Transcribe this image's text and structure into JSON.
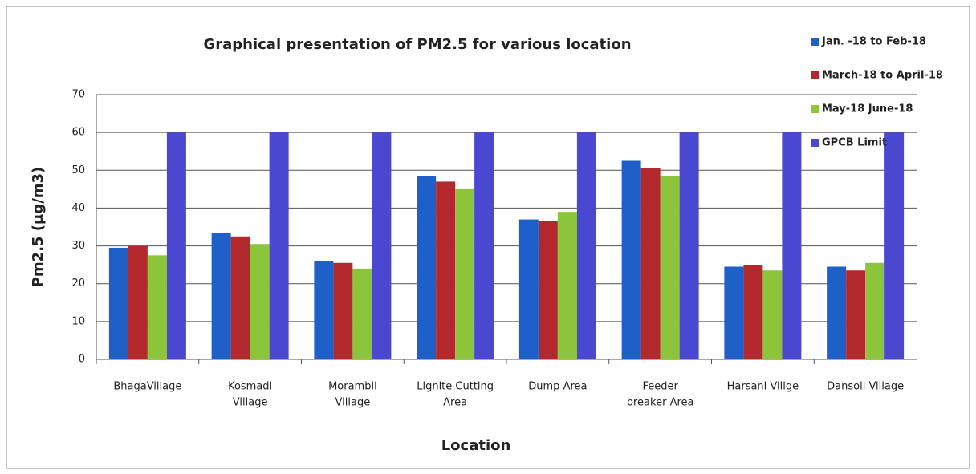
{
  "chart_data": {
    "type": "bar",
    "title": "Graphical presentation of PM2.5 for various location",
    "y_label": "Pm2.5 (µg/m3)",
    "x_label": "Location",
    "categories": [
      [
        "BhagaVillage"
      ],
      [
        "Kosmadi",
        "Village"
      ],
      [
        "Morambli",
        "Village"
      ],
      [
        "Lignite Cutting",
        "Area"
      ],
      [
        "Dump Area"
      ],
      [
        "Feeder",
        "breaker Area"
      ],
      [
        "Harsani Villge"
      ],
      [
        "Dansoli Village"
      ]
    ],
    "series": [
      {
        "name": "Jan. -18 to Feb-18",
        "color": "#1f5fc8",
        "values": [
          29.5,
          33.5,
          26,
          48.5,
          37,
          52.5,
          24.5,
          24.5
        ]
      },
      {
        "name": "March-18 to April-18",
        "color": "#b3282d",
        "values": [
          30,
          32.5,
          25.5,
          47,
          36.5,
          50.5,
          25,
          23.5
        ]
      },
      {
        "name": "May-18 June-18",
        "color": "#8cc43c",
        "values": [
          27.5,
          30.5,
          24,
          45,
          39,
          48.5,
          23.5,
          25.5
        ]
      },
      {
        "name": "GPCB Limit",
        "color": "#4a48d0",
        "values": [
          60,
          60,
          60,
          60,
          60,
          60,
          60,
          60
        ]
      }
    ],
    "ylim": [
      0,
      70
    ],
    "yticks": [
      0,
      10,
      20,
      30,
      40,
      50,
      60,
      70
    ],
    "grid": true
  }
}
